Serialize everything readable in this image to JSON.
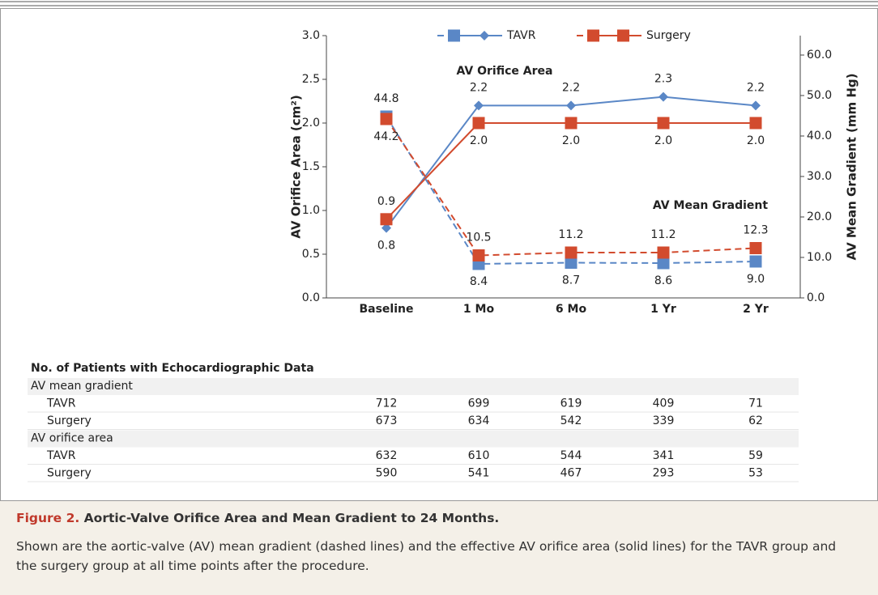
{
  "chart_data": {
    "type": "line",
    "categories": [
      "Baseline",
      "1 Mo",
      "6 Mo",
      "1 Yr",
      "2 Yr"
    ],
    "ylabel": "AV Orifice Area (cm²)",
    "y2label": "AV Mean Gradient (mm Hg)",
    "annotations": [
      "AV Orifice Area",
      "AV Mean Gradient"
    ],
    "ylim": [
      0,
      3
    ],
    "yticks": [
      {
        "value": 0,
        "label": "0.0"
      },
      0.5,
      {
        "value": 1,
        "label": "1.0"
      },
      1.5,
      {
        "value": 2,
        "label": "2.0"
      },
      2.5,
      {
        "value": 3,
        "label": "3.0"
      }
    ],
    "y2lim": [
      0,
      64.8
    ],
    "y2ticks": [
      {
        "value": 0,
        "label": "0.0"
      },
      {
        "value": 10,
        "label": "10.0"
      },
      {
        "value": 20,
        "label": "20.0"
      },
      {
        "value": 30,
        "label": "30.0"
      },
      {
        "value": 40,
        "label": "40.0"
      },
      {
        "value": 50,
        "label": "50.0"
      },
      {
        "value": 60,
        "label": "60.0"
      }
    ],
    "legend": "top",
    "series": [
      {
        "name": "TAVR",
        "color": "#5a87c6",
        "marker": "diamond",
        "dash": false,
        "values": [
          0.8,
          2.2,
          2.2,
          2.3,
          2.2
        ]
      },
      {
        "name": "Surgery",
        "color": "#d24b2e",
        "marker": "square",
        "dash": false,
        "values": [
          0.9,
          2.0,
          2.0,
          2.0,
          2.0
        ],
        "value_labels": [
          "0.9",
          "2.0",
          "2.0",
          "2.0",
          "2.0"
        ]
      },
      {
        "name": "TAVR",
        "color": "#5a87c6",
        "marker": "square",
        "dash": true,
        "axis": "y2",
        "values": [
          44.8,
          8.4,
          8.7,
          8.6,
          9.0
        ],
        "value_labels": [
          "44.8",
          "8.4",
          "8.7",
          "8.6",
          "9.0"
        ]
      },
      {
        "name": "Surgery",
        "color": "#d24b2e",
        "marker": "square",
        "dash": true,
        "axis": "y2",
        "values": [
          44.2,
          10.5,
          11.2,
          11.2,
          12.3
        ]
      }
    ]
  },
  "table": {
    "title": "No. of Patients with Echocardiographic Data",
    "sections": [
      {
        "label": "AV mean gradient",
        "rows": [
          {
            "label": "TAVR",
            "values": [
              "712",
              "699",
              "619",
              "409",
              "71"
            ]
          },
          {
            "label": "Surgery",
            "values": [
              "673",
              "634",
              "542",
              "339",
              "62"
            ]
          }
        ]
      },
      {
        "label": "AV orifice area",
        "rows": [
          {
            "label": "TAVR",
            "values": [
              "632",
              "610",
              "544",
              "341",
              "59"
            ]
          },
          {
            "label": "Surgery",
            "values": [
              "590",
              "541",
              "467",
              "293",
              "53"
            ]
          }
        ]
      }
    ]
  },
  "caption": {
    "label": "Figure 2.",
    "title": "Aortic-Valve Orifice Area and Mean Gradient to 24 Months.",
    "text": "Shown are the aortic-valve (AV) mean gradient (dashed lines) and the effective AV orifice area (solid lines) for the TAVR group and the surgery group at all time points after the procedure."
  }
}
